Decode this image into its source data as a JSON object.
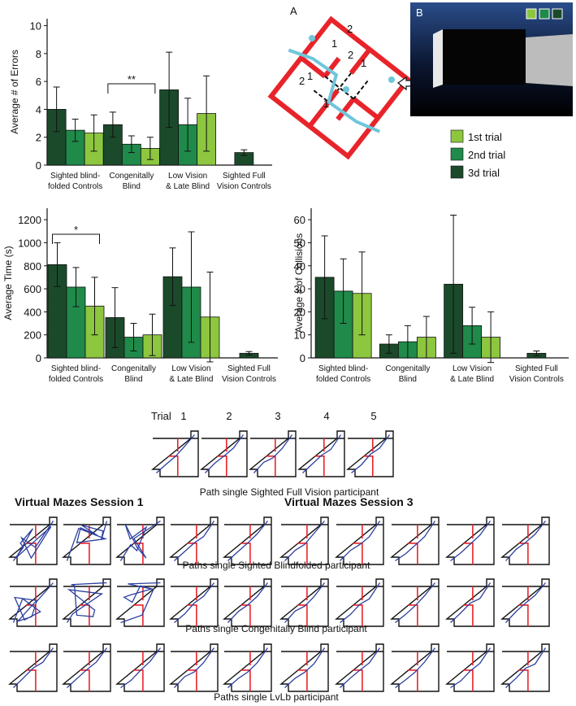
{
  "chart_data": [
    {
      "type": "bar",
      "ylabel": "Average # of Errors",
      "categories": [
        "Sighted blind-\nfolded Controls",
        "Congenitally\nBlind",
        "Low Vision\n& Late Blind",
        "Sighted Full\nVision Controls"
      ],
      "series": [
        {
          "name": "3d trial",
          "color": "#1b4a2b",
          "values": [
            4.0,
            2.9,
            5.4,
            0.9
          ],
          "errors": [
            1.6,
            0.9,
            2.7,
            0.2
          ]
        },
        {
          "name": "2nd trial",
          "color": "#1f8a4a",
          "values": [
            2.5,
            1.5,
            2.9,
            null
          ],
          "errors": [
            0.8,
            0.6,
            1.9,
            null
          ]
        },
        {
          "name": "1st trial",
          "color": "#8dc63f",
          "values": [
            2.3,
            1.2,
            3.7,
            null
          ],
          "errors": [
            1.3,
            0.8,
            2.7,
            null
          ]
        }
      ],
      "ylim": [
        0,
        10.5
      ],
      "yticks": [
        0,
        2,
        4,
        6,
        8,
        10
      ],
      "annotation": "**"
    },
    {
      "type": "bar",
      "ylabel": "Average Time (s)",
      "categories": [
        "Sighted blind-\nfolded Controls",
        "Congenitally\nBlind",
        "Low Vision\n& Late Blind",
        "Sighted Full\nVision Controls"
      ],
      "series": [
        {
          "color": "#1b4a2b",
          "values": [
            810,
            350,
            705,
            40
          ],
          "errors": [
            190,
            260,
            250,
            15
          ]
        },
        {
          "color": "#1f8a4a",
          "values": [
            615,
            180,
            615,
            null
          ],
          "errors": [
            170,
            120,
            480,
            null
          ]
        },
        {
          "color": "#8dc63f",
          "values": [
            450,
            200,
            355,
            null
          ],
          "errors": [
            250,
            180,
            390,
            null
          ]
        }
      ],
      "ylim": [
        0,
        1300
      ],
      "yticks": [
        0,
        200,
        400,
        600,
        800,
        1000,
        1200
      ],
      "annotation": "*"
    },
    {
      "type": "bar",
      "ylabel": "Average # of Collisions",
      "categories": [
        "Sighted blind-\nfolded Controls",
        "Congenitally\nBlind",
        "Low Vision\n& Late Blind",
        "Sighted Full\nVision Controls"
      ],
      "series": [
        {
          "color": "#1b4a2b",
          "values": [
            35,
            6,
            32,
            2
          ],
          "errors": [
            18,
            4,
            30,
            1
          ]
        },
        {
          "color": "#1f8a4a",
          "values": [
            29,
            7,
            14,
            null
          ],
          "errors": [
            14,
            7,
            8,
            null
          ]
        },
        {
          "color": "#8dc63f",
          "values": [
            28,
            9,
            9,
            null
          ],
          "errors": [
            18,
            9,
            11,
            null
          ]
        }
      ],
      "ylim": [
        0,
        65
      ],
      "yticks": [
        0,
        10,
        20,
        30,
        40,
        50,
        60
      ]
    }
  ],
  "figure": {
    "panel_a": "A",
    "panel_b": "B",
    "maze_room_labels": [
      "1",
      "2",
      "2",
      "1",
      "2",
      "1",
      "1"
    ],
    "trial_label": "Trial",
    "trial_numbers": [
      "1",
      "2",
      "3",
      "4",
      "5"
    ],
    "full_vision_caption": "Path single Sighted Full Vision participant",
    "session_titles": [
      "Virtual Mazes Session 1",
      "Virtual Mazes Session 3"
    ],
    "row_captions": [
      "Paths single Sighted Blindfolded participant",
      "Paths single Congenitally Blind participant",
      "Paths single LvLb participant"
    ]
  }
}
